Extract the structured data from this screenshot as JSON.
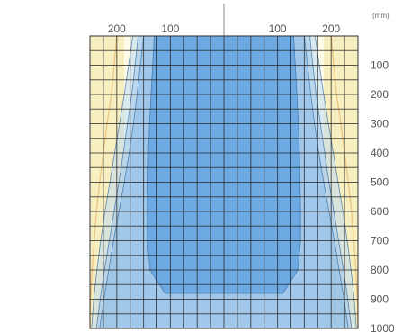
{
  "chart_data": {
    "type": "area",
    "x_ticks": [
      {
        "value": -200,
        "label": "200"
      },
      {
        "value": -100,
        "label": "100"
      },
      {
        "value": 100,
        "label": "100"
      },
      {
        "value": 200,
        "label": "200"
      }
    ],
    "y_ticks": [
      {
        "value": 100,
        "label": "100"
      },
      {
        "value": 200,
        "label": "200"
      },
      {
        "value": 300,
        "label": "300"
      },
      {
        "value": 400,
        "label": "400"
      },
      {
        "value": 500,
        "label": "500"
      },
      {
        "value": 600,
        "label": "600"
      },
      {
        "value": 700,
        "label": "700"
      },
      {
        "value": 800,
        "label": "800"
      },
      {
        "value": 900,
        "label": "900"
      },
      {
        "value": 1000,
        "label": "1000"
      }
    ],
    "xlim": [
      -250,
      250
    ],
    "ylim": [
      0,
      1000
    ],
    "y_unit": "(mm)",
    "grid": true,
    "series": [
      {
        "color": "#e8b86a",
        "x_left": [
          -200,
          -205,
          -210,
          -218,
          -225,
          -232,
          -238,
          -242,
          -246,
          -249,
          -250
        ],
        "x_right": [
          200,
          205,
          210,
          218,
          225,
          232,
          238,
          242,
          246,
          249,
          250
        ],
        "y": [
          0,
          100,
          200,
          300,
          400,
          500,
          600,
          700,
          800,
          900,
          1000
        ]
      },
      {
        "color": "#bcd9f0",
        "x_left": [
          -170,
          -178,
          -186,
          -195,
          -204,
          -213,
          -222,
          -230,
          -237,
          -243,
          -247
        ],
        "x_right": [
          170,
          178,
          186,
          195,
          204,
          213,
          222,
          230,
          237,
          243,
          247
        ],
        "y": [
          0,
          100,
          200,
          300,
          400,
          500,
          600,
          700,
          800,
          900,
          1000
        ]
      },
      {
        "color": "#a2c8ec",
        "x_left": [
          -160,
          -166,
          -172,
          -180,
          -188,
          -196,
          -205,
          -214,
          -223,
          -231,
          -238
        ],
        "x_right": [
          160,
          166,
          172,
          180,
          188,
          196,
          205,
          214,
          223,
          231,
          238
        ],
        "y": [
          0,
          100,
          200,
          300,
          400,
          500,
          600,
          700,
          800,
          900,
          1000
        ]
      },
      {
        "color": "#8dbce8",
        "x_left": [
          -150,
          -156,
          -162,
          -169,
          -177,
          -186,
          -196,
          -206,
          -215,
          -224,
          -232
        ],
        "x_right": [
          150,
          156,
          162,
          169,
          177,
          186,
          196,
          206,
          215,
          224,
          232
        ],
        "y": [
          0,
          100,
          200,
          300,
          400,
          500,
          600,
          700,
          800,
          900,
          1000
        ]
      },
      {
        "color": "#6aa9e4",
        "x_left": [
          -130,
          -133,
          -136,
          -139,
          -141,
          -142,
          -143,
          -143,
          -138,
          -110
        ],
        "x_right": [
          130,
          133,
          136,
          139,
          141,
          142,
          143,
          143,
          138,
          110
        ],
        "y": [
          0,
          100,
          200,
          300,
          400,
          500,
          600,
          700,
          800,
          880
        ]
      }
    ],
    "band_colors": {
      "background": "#fffde8",
      "outer_band": "#f8efc0",
      "grid": "#222222",
      "center_line": "#888888"
    }
  }
}
